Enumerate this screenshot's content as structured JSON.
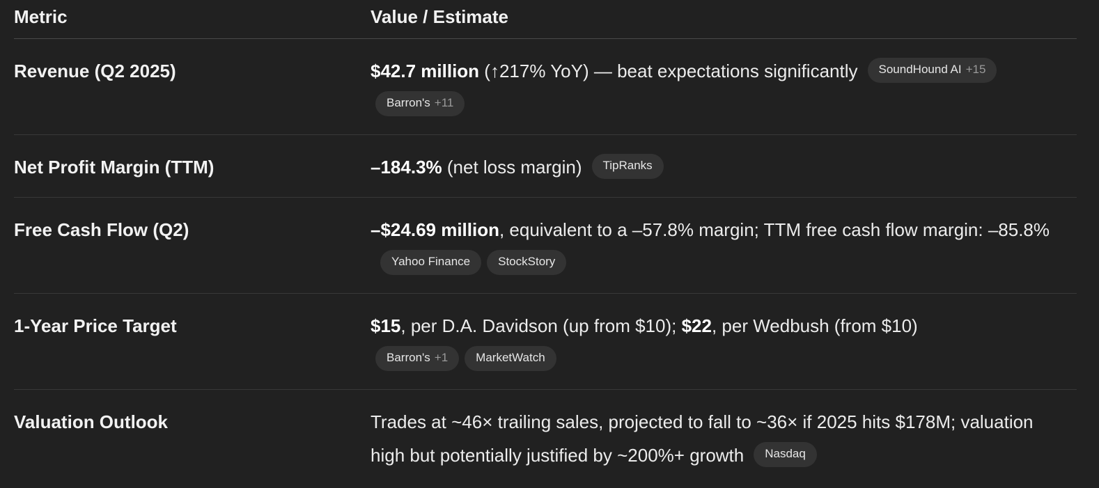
{
  "header": {
    "col1": "Metric",
    "col2": "Value / Estimate"
  },
  "rows": [
    {
      "metric": "Revenue (Q2 2025)",
      "bold1": "$42.7 million",
      "text1": " (↑217% YoY) — beat expectations significantly",
      "pills": [
        {
          "label": "SoundHound AI",
          "more": "+15"
        },
        {
          "label": "Barron's",
          "more": "+11"
        }
      ]
    },
    {
      "metric": "Net Profit Margin (TTM)",
      "bold1": "–184.3%",
      "text1": " (net loss margin)",
      "pills": [
        {
          "label": "TipRanks",
          "more": ""
        }
      ]
    },
    {
      "metric": "Free Cash Flow (Q2)",
      "bold1": "–$24.69 million",
      "text1": ", equivalent to a –57.8% margin; TTM free cash flow margin: –85.8%",
      "pills": [
        {
          "label": "Yahoo Finance",
          "more": ""
        },
        {
          "label": "StockStory",
          "more": ""
        }
      ]
    },
    {
      "metric": "1-Year Price Target",
      "bold1": "$15",
      "text1": ", per D.A. Davidson (up from $10); ",
      "bold2": "$22",
      "text2": ", per Wedbush (from $10)",
      "pills": [
        {
          "label": "Barron's",
          "more": "+1"
        },
        {
          "label": "MarketWatch",
          "more": ""
        }
      ]
    },
    {
      "metric": "Valuation Outlook",
      "text1": "Trades at ~46× trailing sales, projected to fall to ~36× if 2025 hits $178M; valuation high but potentially justified by ~200%+ growth",
      "pills": [
        {
          "label": "Nasdaq",
          "more": ""
        }
      ]
    }
  ]
}
